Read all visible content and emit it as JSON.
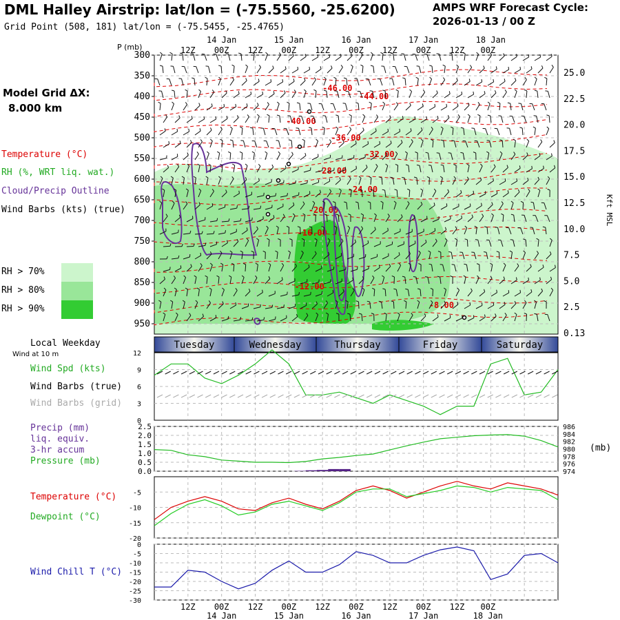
{
  "header": {
    "title": "DML Halley Airstrip:  lat/lon = (-75.5560, -25.6200)",
    "grid_point": "Grid Point (508, 181) lat/lon = (-75.5455, -25.4765)",
    "cycle_line1": "AMPS WRF Forecast Cycle:",
    "cycle_line2": "2026-01-13 / 00  Z"
  },
  "legend": {
    "model_grid": "Model Grid ΔX:",
    "model_dx": "8.000 km",
    "temperature": "Temperature (°C)",
    "rh": "RH (%, WRT liq. wat.)",
    "cloud": "Cloud/Precip Outline",
    "wind_barbs": "Wind Barbs (kts) (true)",
    "rh70": "RH > 70%",
    "rh80": "RH > 80%",
    "rh90": "RH > 90%",
    "local_weekday": "Local Weekday",
    "wind_at": "Wind at 10 m",
    "wind_spd": "Wind Spd (kts)",
    "wind_barbs_true": "Wind Barbs (true)",
    "wind_barbs_grid": "Wind Barbs (grid)",
    "precip1": "Precip (mm)",
    "precip2": "liq. equiv.",
    "precip3": "3-hr accum",
    "pressure": "Pressure (mb)",
    "temp2": "Temperature (°C)",
    "dewpoint": "Dewpoint (°C)",
    "windchill": "Wind Chill T (°C)",
    "p_unit": "P (mb)",
    "kft": "Kft MSL",
    "mb_right": "(mb)"
  },
  "colors": {
    "temperature": "#dd0000",
    "rh_text": "#22aa22",
    "cloud": "#663399",
    "rh70": "#ccf5cc",
    "rh80": "#99e699",
    "rh90": "#33cc33",
    "pressure": "#22bb22",
    "precip": "#552288",
    "dewpoint": "#22cc22",
    "windchill": "#1a1aaa",
    "windspd": "#22bb22",
    "grid_barbs": "#aaaaaa"
  },
  "time_axis": {
    "top_ticks": [
      "12Z",
      "00Z",
      "12Z",
      "00Z",
      "12Z",
      "00Z",
      "12Z",
      "00Z",
      "12Z",
      "00Z"
    ],
    "top_dates": [
      "14 Jan",
      "15 Jan",
      "16 Jan",
      "17 Jan",
      "18 Jan"
    ],
    "bottom_ticks": [
      "12Z",
      "00Z",
      "12Z",
      "00Z",
      "12Z",
      "00Z",
      "12Z",
      "00Z",
      "12Z",
      "00Z"
    ],
    "bottom_dates": [
      "14 Jan",
      "15 Jan",
      "16 Jan",
      "17 Jan",
      "18 Jan"
    ]
  },
  "weekdays": [
    "Tuesday",
    "Wednesday",
    "Thursday",
    "Friday",
    "Saturday"
  ],
  "chart_data": [
    {
      "type": "heatmap",
      "title": "",
      "ylabel": "P (mb)",
      "y_ticks": [
        "300",
        "350",
        "400",
        "450",
        "500",
        "550",
        "600",
        "650",
        "700",
        "750",
        "800",
        "850",
        "900",
        "950"
      ],
      "right_ticks": [
        "25.0",
        "22.5",
        "20.0",
        "17.5",
        "15.0",
        "12.5",
        "10.0",
        "7.5",
        "5.0",
        "2.5",
        "0.13"
      ],
      "right_label": "Kft MSL",
      "temperature_labels": [
        {
          "text": "-46.00",
          "p": 380,
          "hour": 60
        },
        {
          "text": "-44.00",
          "p": 400,
          "hour": 73
        },
        {
          "text": "-40.00",
          "p": 460,
          "hour": 47
        },
        {
          "text": "-36.00",
          "p": 500,
          "hour": 63
        },
        {
          "text": "-32.00",
          "p": 540,
          "hour": 75
        },
        {
          "text": "-28.00",
          "p": 580,
          "hour": 58
        },
        {
          "text": "-24.00",
          "p": 625,
          "hour": 69
        },
        {
          "text": "-20.00",
          "p": 675,
          "hour": 55
        },
        {
          "text": "-16.00",
          "p": 730,
          "hour": 51
        },
        {
          "text": "-12.00",
          "p": 860,
          "hour": 50
        },
        {
          "text": "-8.00",
          "p": 905,
          "hour": 98
        }
      ]
    },
    {
      "type": "line",
      "title": "",
      "ylim": [
        0,
        12
      ],
      "y_ticks": [
        "0",
        "3",
        "6",
        "9",
        "12"
      ],
      "series": [
        {
          "name": "Wind Spd (kts)",
          "x": [
            0,
            6,
            12,
            18,
            24,
            30,
            36,
            42,
            48,
            54,
            60,
            66,
            72,
            78,
            84,
            90,
            96,
            102,
            108,
            114,
            120,
            126,
            132,
            138,
            144
          ],
          "values": [
            8,
            10,
            10,
            7.5,
            6.5,
            8,
            10,
            12.5,
            10,
            4.5,
            4.5,
            5,
            4,
            3,
            4.5,
            3.5,
            2.5,
            1,
            2.5,
            2.5,
            10,
            11,
            4.5,
            5,
            9
          ]
        }
      ]
    },
    {
      "type": "line",
      "title": "",
      "ylim": [
        0,
        2.5
      ],
      "left_ticks": [
        "0.0",
        "0.5",
        "1.0",
        "1.5",
        "2.0",
        "2.5"
      ],
      "right_ticks": [
        "974",
        "976",
        "978",
        "980",
        "982",
        "984",
        "986"
      ],
      "series": [
        {
          "name": "Pressure (mb)",
          "x": [
            0,
            6,
            12,
            18,
            24,
            30,
            36,
            42,
            48,
            54,
            60,
            66,
            72,
            78,
            84,
            90,
            96,
            102,
            108,
            114,
            120,
            126,
            132,
            138,
            144
          ],
          "values": [
            979.8,
            979.6,
            978.4,
            977.9,
            977.0,
            976.7,
            976.4,
            976.4,
            976.3,
            976.6,
            977.3,
            977.7,
            978.2,
            978.6,
            979.7,
            980.8,
            981.8,
            982.7,
            983.1,
            983.5,
            983.7,
            983.8,
            983.4,
            982.2,
            980.5
          ]
        },
        {
          "name": "Precip (mm)",
          "x": [
            50,
            54,
            58,
            62,
            66
          ],
          "values": [
            0.02,
            0.05,
            0.07,
            0.12,
            0.12
          ]
        }
      ]
    },
    {
      "type": "line",
      "title": "",
      "y_ticks": [
        "-20",
        "-15",
        "-10",
        "-5"
      ],
      "series": [
        {
          "name": "Temperature (°C)",
          "x": [
            0,
            6,
            12,
            18,
            24,
            30,
            36,
            42,
            48,
            54,
            60,
            66,
            72,
            78,
            84,
            90,
            96,
            102,
            108,
            114,
            120,
            126,
            132,
            138,
            144
          ],
          "values": [
            -14,
            -10,
            -8,
            -6.5,
            -8,
            -10.5,
            -11,
            -8.5,
            -7,
            -9,
            -10.5,
            -8,
            -4.5,
            -3,
            -4.5,
            -7,
            -5,
            -3,
            -1.5,
            -3,
            -4,
            -2,
            -3,
            -4,
            -6
          ]
        },
        {
          "name": "Dewpoint (°C)",
          "x": [
            0,
            6,
            12,
            18,
            24,
            30,
            36,
            42,
            48,
            54,
            60,
            66,
            72,
            78,
            84,
            90,
            96,
            102,
            108,
            114,
            120,
            126,
            132,
            138,
            144
          ],
          "values": [
            -16,
            -12,
            -9,
            -7.5,
            -9.5,
            -12.5,
            -11.5,
            -9,
            -8,
            -9.5,
            -11,
            -8.5,
            -5,
            -4,
            -4,
            -6.5,
            -5.5,
            -4.5,
            -3,
            -3.5,
            -5,
            -3.5,
            -4,
            -4.5,
            -7.5
          ]
        }
      ]
    },
    {
      "type": "line",
      "title": "",
      "y_ticks": [
        "-30",
        "-25",
        "-20",
        "-15",
        "-10",
        "-5",
        "0"
      ],
      "series": [
        {
          "name": "Wind Chill T (°C)",
          "x": [
            0,
            6,
            12,
            18,
            24,
            30,
            36,
            42,
            48,
            54,
            60,
            66,
            72,
            78,
            84,
            90,
            96,
            102,
            108,
            114,
            120,
            126,
            132,
            138,
            144
          ],
          "values": [
            -23,
            -23,
            -14,
            -15,
            -20,
            -24,
            -21,
            -14,
            -9,
            -15,
            -15,
            -11,
            -4,
            -6,
            -10,
            -10,
            -6,
            -3,
            -1.5,
            -3.5,
            -19,
            -16,
            -6,
            -5,
            -10
          ]
        }
      ]
    }
  ]
}
